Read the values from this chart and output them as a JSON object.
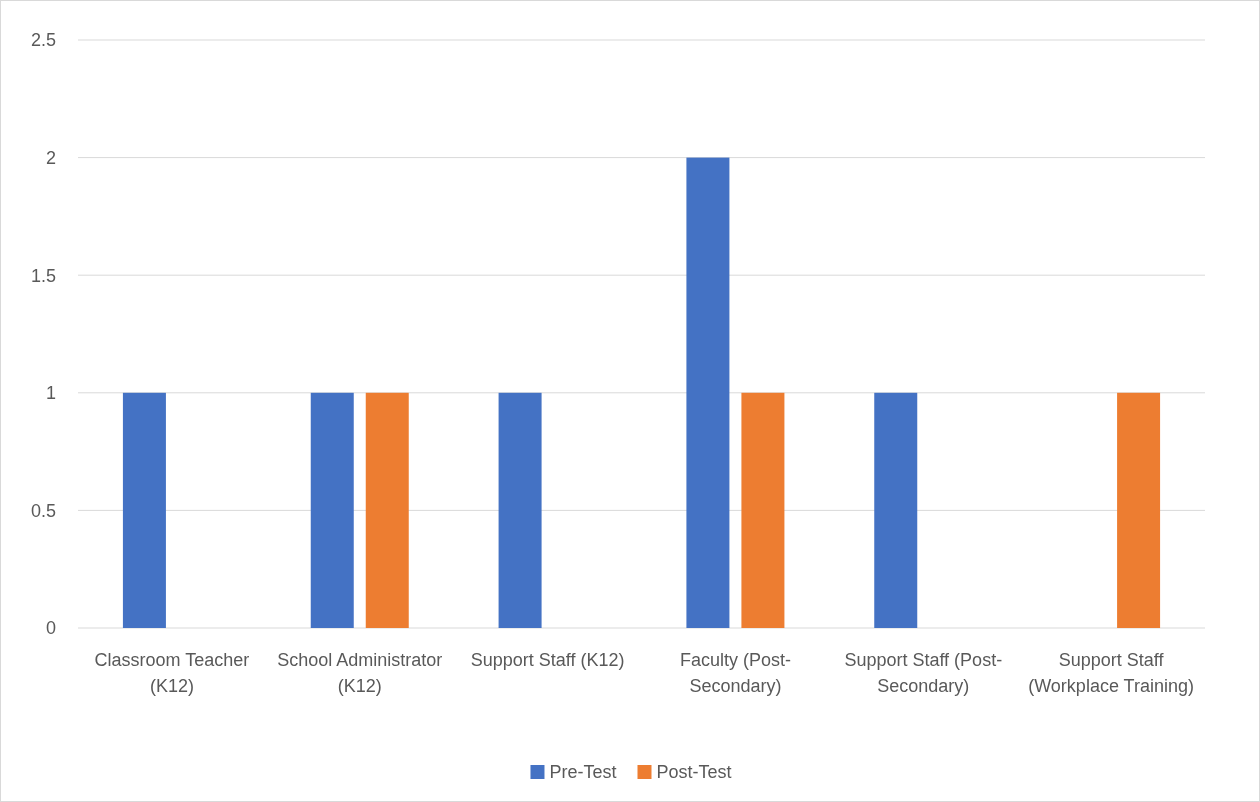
{
  "chart_data": {
    "type": "bar",
    "categories": [
      "Classroom Teacher (K12)",
      "School Administrator (K12)",
      "Support Staff (K12)",
      "Faculty (Post-Secondary)",
      "Support Staff (Post-Secondary)",
      "Support Staff (Workplace Training)"
    ],
    "series": [
      {
        "name": "Pre-Test",
        "color": "#4472c4",
        "values": [
          1,
          1,
          1,
          2,
          1,
          0
        ]
      },
      {
        "name": "Post-Test",
        "color": "#ed7d31",
        "values": [
          0,
          1,
          0,
          1,
          0,
          1
        ]
      }
    ],
    "ylim": [
      0,
      2.5
    ],
    "yticks": [
      0,
      0.5,
      1,
      1.5,
      2,
      2.5
    ],
    "grid": "y",
    "legend": "bottom"
  }
}
